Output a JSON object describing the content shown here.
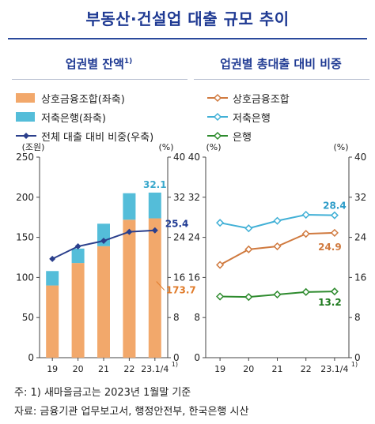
{
  "header": {
    "title": "부동산·건설업 대출 규모 추이"
  },
  "left_panel": {
    "title": "업권별 잔액",
    "title_sup": "1)"
  },
  "right_panel": {
    "title": "업권별 총대출 대비 비중"
  },
  "footnotes": {
    "note": "주: 1) 새마을금고는 2023년 1월말 기준",
    "source": "자료: 금융기관 업무보고서, 행정안전부, 한국은행 시산"
  },
  "chart_data": [
    {
      "type": "bar",
      "stacked": true,
      "categories": [
        "19",
        "20",
        "21",
        "22",
        "23.1/4"
      ],
      "category_sup": [
        "",
        "",
        "",
        "",
        "1)"
      ],
      "series": [
        {
          "name": "상호금융조합(좌축)",
          "color": "#f2a86b",
          "values": [
            90,
            118,
            139,
            172,
            173.7
          ],
          "axis": "left"
        },
        {
          "name": "저축은행(좌축)",
          "color": "#54bdd9",
          "values": [
            18,
            18,
            28,
            33,
            32.1
          ],
          "axis": "left"
        },
        {
          "name": "전체 대출 대비 비중(우축)",
          "type": "line",
          "color": "#2b3f8c",
          "values": [
            19.7,
            22.2,
            23.3,
            25.1,
            25.4
          ],
          "axis": "right"
        }
      ],
      "left_axis": {
        "unit": "(조원)",
        "ylim": [
          0,
          250
        ],
        "ticks": [
          0,
          50,
          100,
          150,
          200,
          250
        ]
      },
      "right_axis": {
        "unit": "(%)",
        "ylim": [
          0,
          40
        ],
        "ticks": [
          0,
          8,
          16,
          24,
          32,
          40
        ]
      },
      "data_labels": [
        {
          "series": "저축은행(좌축)",
          "index": 4,
          "text": "32.1",
          "color": "#3aa8cc"
        },
        {
          "series": "전체 대출 대비 비중(우축)",
          "index": 4,
          "text": "25.4",
          "color": "#1f3a93"
        },
        {
          "series": "상호금융조합(좌축)",
          "index": 4,
          "text": "173.7",
          "color": "#e07b2a"
        }
      ]
    },
    {
      "type": "line",
      "categories": [
        "19",
        "20",
        "21",
        "22",
        "23.1/4"
      ],
      "category_sup": [
        "",
        "",
        "",
        "",
        "1)"
      ],
      "series": [
        {
          "name": "상호금융조합",
          "color": "#d07a3f",
          "values": [
            18.5,
            21.6,
            22.2,
            24.7,
            24.9
          ]
        },
        {
          "name": "저축은행",
          "color": "#41b0d6",
          "values": [
            26.9,
            25.8,
            27.3,
            28.5,
            28.4
          ]
        },
        {
          "name": "은행",
          "color": "#2e8b2e",
          "values": [
            12.2,
            12.1,
            12.6,
            13.1,
            13.2
          ]
        }
      ],
      "left_axis": {
        "unit": "(%)",
        "ylim": [
          0,
          40
        ],
        "ticks": [
          0,
          8,
          16,
          24,
          32,
          40
        ]
      },
      "right_axis": {
        "unit": "(%)",
        "ylim": [
          0,
          40
        ],
        "ticks": [
          0,
          8,
          16,
          24,
          32,
          40
        ]
      },
      "data_labels": [
        {
          "series": "저축은행",
          "index": 4,
          "text": "28.4",
          "color": "#2d9cc8"
        },
        {
          "series": "상호금융조합",
          "index": 4,
          "text": "24.9",
          "color": "#d07a3f"
        },
        {
          "series": "은행",
          "index": 4,
          "text": "13.2",
          "color": "#1f7a1f"
        }
      ]
    }
  ]
}
